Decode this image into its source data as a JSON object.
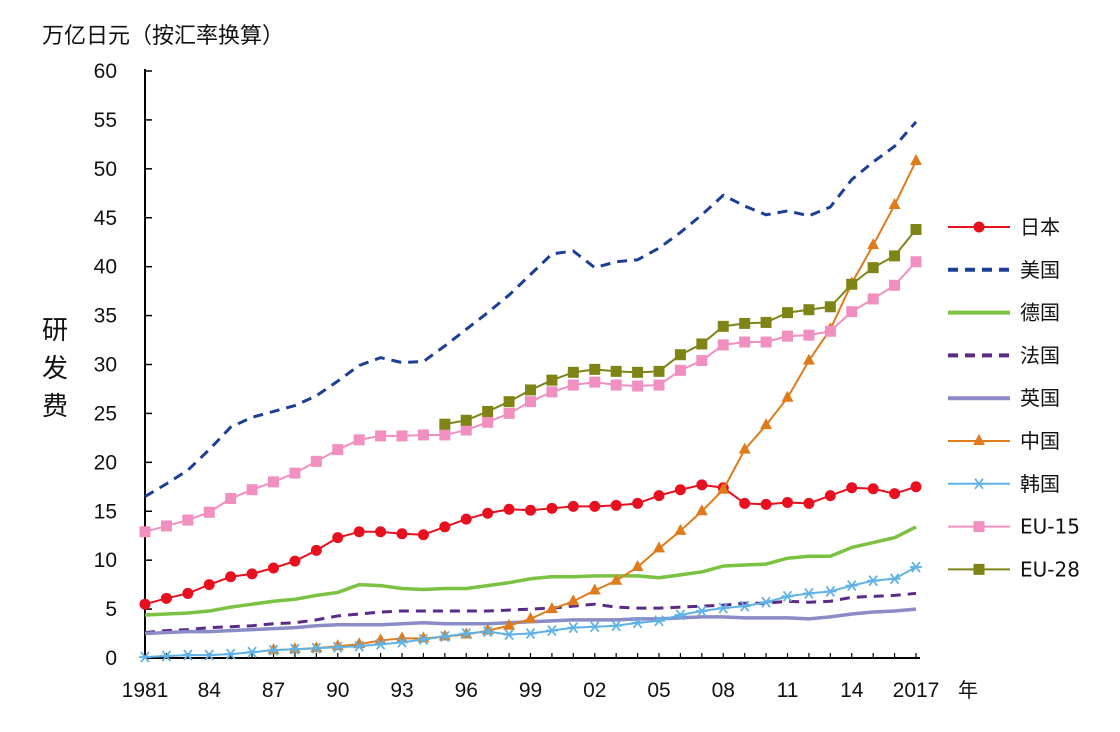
{
  "chart_data": {
    "type": "line",
    "unit_title": "万亿日元（按汇率换算）",
    "ylabel": "研发费",
    "xlabel": "年",
    "x": [
      1981,
      1982,
      1983,
      1984,
      1985,
      1986,
      1987,
      1988,
      1989,
      1990,
      1991,
      1992,
      1993,
      1994,
      1995,
      1996,
      1997,
      1998,
      1999,
      2000,
      2001,
      2002,
      2003,
      2004,
      2005,
      2006,
      2007,
      2008,
      2009,
      2010,
      2011,
      2012,
      2013,
      2014,
      2015,
      2016,
      2017
    ],
    "xlim": [
      1981,
      2017
    ],
    "x_ticks": [
      1981,
      1984,
      1987,
      1990,
      1993,
      1996,
      1999,
      2002,
      2005,
      2008,
      2011,
      2014,
      2017
    ],
    "x_tick_labels": [
      "1981",
      "84",
      "87",
      "90",
      "93",
      "96",
      "99",
      "02",
      "05",
      "08",
      "11",
      "14",
      "2017"
    ],
    "ylim": [
      0,
      60
    ],
    "y_ticks": [
      0,
      5,
      10,
      15,
      20,
      25,
      30,
      35,
      40,
      45,
      50,
      55,
      60
    ],
    "grid": false,
    "legend_position": "right",
    "series": [
      {
        "name": "日本",
        "color": "#e8101e",
        "style": "solid",
        "marker": "circle",
        "values": [
          5.5,
          6.1,
          6.6,
          7.5,
          8.3,
          8.6,
          9.2,
          9.9,
          11.0,
          12.3,
          12.9,
          12.9,
          12.7,
          12.6,
          13.4,
          14.2,
          14.8,
          15.2,
          15.1,
          15.3,
          15.5,
          15.5,
          15.6,
          15.8,
          16.6,
          17.2,
          17.7,
          17.4,
          15.8,
          15.7,
          15.9,
          15.8,
          16.6,
          17.4,
          17.3,
          16.8,
          17.5
        ]
      },
      {
        "name": "美国",
        "color": "#1b3f96",
        "style": "dashed",
        "marker": "none",
        "values": [
          16.5,
          17.8,
          19.2,
          21.3,
          23.6,
          24.6,
          25.2,
          25.8,
          26.8,
          28.3,
          29.9,
          30.7,
          30.2,
          30.3,
          31.9,
          33.6,
          35.3,
          37.1,
          39.2,
          41.3,
          41.6,
          39.9,
          40.5,
          40.7,
          41.9,
          43.5,
          45.3,
          47.3,
          46.2,
          45.3,
          45.7,
          45.2,
          46.1,
          48.9,
          50.7,
          52.3,
          54.8
        ]
      },
      {
        "name": "德国",
        "color": "#7cc242",
        "style": "solid",
        "marker": "none",
        "values": [
          4.4,
          4.5,
          4.6,
          4.8,
          5.2,
          5.5,
          5.8,
          6.0,
          6.4,
          6.7,
          7.5,
          7.4,
          7.1,
          7.0,
          7.1,
          7.1,
          7.4,
          7.7,
          8.1,
          8.3,
          8.3,
          8.4,
          8.4,
          8.4,
          8.2,
          8.5,
          8.8,
          9.4,
          9.5,
          9.6,
          10.2,
          10.4,
          10.4,
          11.3,
          11.8,
          12.3,
          13.4
        ]
      },
      {
        "name": "法国",
        "color": "#5b2a86",
        "style": "dashed",
        "marker": "none",
        "values": [
          2.6,
          2.8,
          2.9,
          3.1,
          3.2,
          3.3,
          3.5,
          3.6,
          3.9,
          4.3,
          4.5,
          4.7,
          4.8,
          4.8,
          4.8,
          4.8,
          4.8,
          4.9,
          5.0,
          5.1,
          5.3,
          5.5,
          5.2,
          5.1,
          5.1,
          5.2,
          5.3,
          5.4,
          5.6,
          5.6,
          5.8,
          5.7,
          5.8,
          6.2,
          6.3,
          6.4,
          6.6
        ]
      },
      {
        "name": "英国",
        "color": "#8a8cc8",
        "style": "solid",
        "marker": "none",
        "values": [
          2.5,
          2.6,
          2.7,
          2.7,
          2.8,
          2.9,
          3.0,
          3.1,
          3.3,
          3.4,
          3.4,
          3.4,
          3.5,
          3.6,
          3.5,
          3.5,
          3.5,
          3.6,
          3.7,
          3.8,
          3.9,
          3.9,
          3.9,
          4.0,
          4.0,
          4.1,
          4.2,
          4.2,
          4.1,
          4.1,
          4.1,
          4.0,
          4.2,
          4.5,
          4.7,
          4.8,
          5.0
        ]
      },
      {
        "name": "中国",
        "color": "#e07b1b",
        "style": "solid",
        "marker": "triangle",
        "values": [
          null,
          null,
          null,
          null,
          null,
          null,
          0.8,
          0.9,
          1.0,
          1.2,
          1.4,
          1.8,
          2.0,
          2.0,
          2.2,
          2.4,
          2.8,
          3.3,
          4.0,
          5.0,
          5.8,
          6.9,
          7.9,
          9.3,
          11.2,
          13.0,
          15.0,
          17.2,
          21.3,
          23.8,
          26.6,
          30.4,
          33.6,
          38.3,
          42.2,
          46.3,
          50.8
        ]
      },
      {
        "name": "韩国",
        "color": "#5fb2e6",
        "style": "solid",
        "marker": "star",
        "values": [
          0.1,
          0.2,
          0.3,
          0.3,
          0.4,
          0.6,
          0.8,
          0.9,
          1.0,
          1.1,
          1.2,
          1.4,
          1.6,
          1.9,
          2.2,
          2.5,
          2.7,
          2.4,
          2.5,
          2.8,
          3.1,
          3.2,
          3.3,
          3.6,
          3.8,
          4.4,
          4.8,
          5.1,
          5.3,
          5.7,
          6.3,
          6.6,
          6.8,
          7.4,
          7.9,
          8.1,
          9.3
        ]
      },
      {
        "name": "EU-15",
        "color": "#f08fc0",
        "style": "solid",
        "marker": "square",
        "values": [
          12.9,
          13.5,
          14.1,
          14.9,
          16.3,
          17.2,
          18.0,
          18.9,
          20.1,
          21.3,
          22.3,
          22.7,
          22.7,
          22.8,
          22.8,
          23.3,
          24.1,
          25.0,
          26.2,
          27.2,
          27.9,
          28.2,
          27.9,
          27.8,
          27.9,
          29.4,
          30.4,
          32.0,
          32.3,
          32.3,
          32.9,
          33.0,
          33.4,
          35.4,
          36.7,
          38.1,
          40.5
        ]
      },
      {
        "name": "EU-28",
        "color": "#7f8417",
        "style": "solid",
        "marker": "square",
        "values": [
          null,
          null,
          null,
          null,
          null,
          null,
          null,
          null,
          null,
          null,
          null,
          null,
          null,
          null,
          23.9,
          24.3,
          25.2,
          26.2,
          27.4,
          28.4,
          29.2,
          29.5,
          29.3,
          29.2,
          29.3,
          31.0,
          32.1,
          33.9,
          34.2,
          34.3,
          35.3,
          35.6,
          35.9,
          38.2,
          39.9,
          41.1,
          43.8
        ]
      }
    ]
  }
}
